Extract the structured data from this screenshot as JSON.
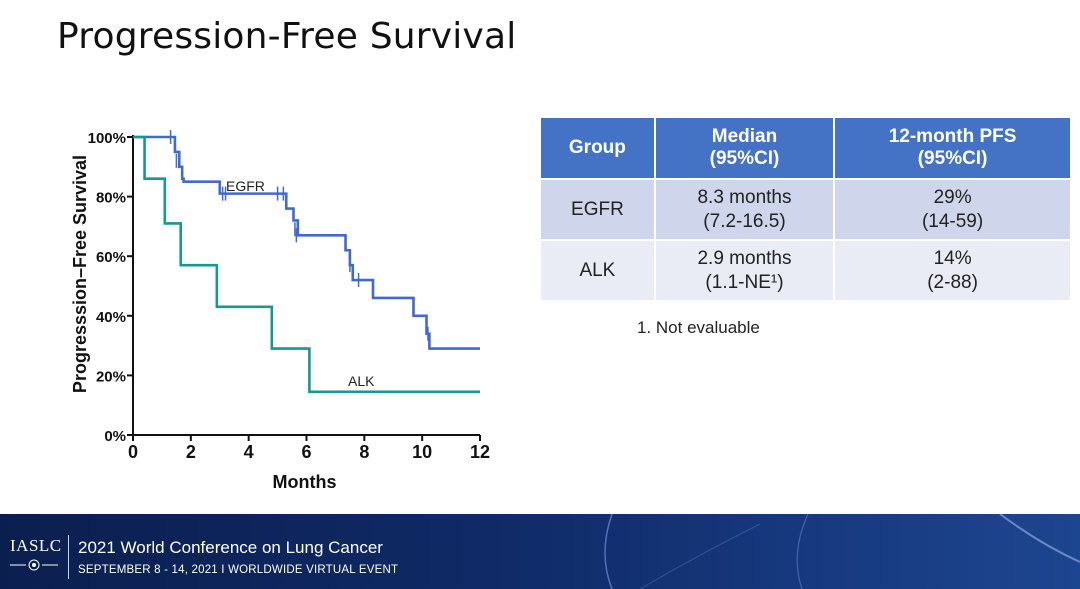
{
  "title": "Progression-Free Survival",
  "chart_data": {
    "type": "line",
    "title": "",
    "xlabel": "Months",
    "ylabel": "Progresssion–Free Survival",
    "xlim": [
      0,
      12
    ],
    "ylim": [
      0,
      100
    ],
    "xticks": [
      "0",
      "2",
      "4",
      "6",
      "8",
      "10",
      "12"
    ],
    "yticks": [
      "0%",
      "20%",
      "40%",
      "60%",
      "80%",
      "100%"
    ],
    "series": [
      {
        "name": "EGFR",
        "color": "#4169cf",
        "steps": [
          [
            0,
            100
          ],
          [
            1.4,
            100
          ],
          [
            1.45,
            95
          ],
          [
            1.6,
            90
          ],
          [
            1.7,
            86
          ],
          [
            1.75,
            85
          ],
          [
            2.9,
            85
          ],
          [
            3.0,
            81
          ],
          [
            5.1,
            81
          ],
          [
            5.3,
            76
          ],
          [
            5.55,
            72
          ],
          [
            5.7,
            67
          ],
          [
            7.2,
            67
          ],
          [
            7.35,
            62
          ],
          [
            7.5,
            57
          ],
          [
            7.6,
            52
          ],
          [
            8.3,
            52
          ],
          [
            8.3,
            46
          ],
          [
            9.6,
            46
          ],
          [
            9.7,
            40
          ],
          [
            10.1,
            40
          ],
          [
            10.15,
            34
          ],
          [
            10.25,
            29
          ],
          [
            12,
            29
          ]
        ],
        "censors": [
          [
            1.3,
            100
          ],
          [
            1.5,
            92
          ],
          [
            3.1,
            81
          ],
          [
            3.2,
            81
          ],
          [
            5.0,
            81
          ],
          [
            5.2,
            81
          ],
          [
            5.6,
            69
          ],
          [
            5.65,
            67
          ],
          [
            7.5,
            57
          ],
          [
            7.8,
            52
          ],
          [
            10.2,
            34
          ]
        ]
      },
      {
        "name": "ALK",
        "color": "#16988e",
        "steps": [
          [
            0,
            100
          ],
          [
            0.4,
            100
          ],
          [
            0.4,
            86
          ],
          [
            1.1,
            86
          ],
          [
            1.1,
            71
          ],
          [
            1.65,
            71
          ],
          [
            1.65,
            57
          ],
          [
            2.9,
            57
          ],
          [
            2.9,
            43
          ],
          [
            4.8,
            43
          ],
          [
            4.8,
            29
          ],
          [
            6.1,
            29
          ],
          [
            6.1,
            14.5
          ],
          [
            12,
            14.5
          ]
        ],
        "censors": []
      }
    ]
  },
  "table": {
    "headers": [
      [
        "Group",
        ""
      ],
      [
        "Median",
        "(95%CI)"
      ],
      [
        "12-month PFS",
        "(95%CI)"
      ]
    ],
    "rows": [
      [
        [
          "EGFR",
          ""
        ],
        [
          "8.3 months",
          "(7.2-16.5)"
        ],
        [
          "29%",
          "(14-59)"
        ]
      ],
      [
        [
          "ALK",
          ""
        ],
        [
          "2.9 months",
          "(1.1-NE¹)"
        ],
        [
          "14%",
          "(2-88)"
        ]
      ]
    ]
  },
  "footnote": "1. Not evaluable",
  "footer": {
    "org": "IASLC",
    "conference": "2021 World Conference on Lung Cancer",
    "subtitle": "SEPTEMBER 8 - 14, 2021 I WORLDWIDE VIRTUAL EVENT"
  }
}
